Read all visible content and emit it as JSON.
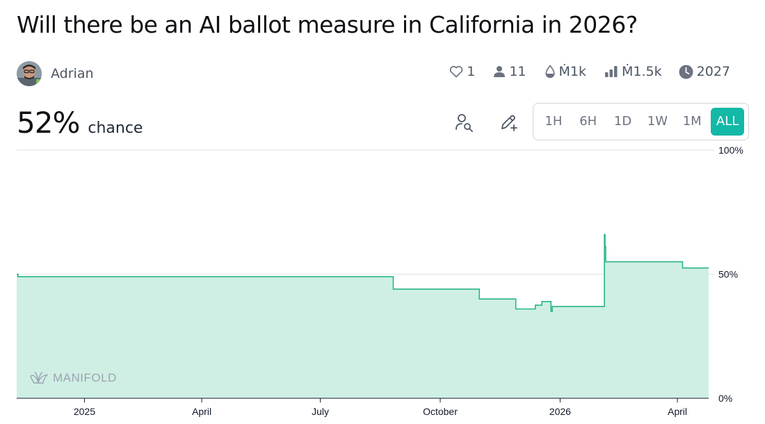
{
  "question": {
    "title": "Will there be an AI ballot measure in California in 2026?"
  },
  "creator": {
    "name": "Adrian"
  },
  "stats": {
    "likes": "1",
    "traders": "11",
    "liquidity": "Ṁ1k",
    "volume": "Ṁ1.5k",
    "close_year": "2027"
  },
  "probability": {
    "value": "52%",
    "label": "chance"
  },
  "time_ranges": [
    "1H",
    "6H",
    "1D",
    "1W",
    "1M",
    "ALL"
  ],
  "selected_range": "ALL",
  "watermark": "MANIFOLD",
  "colors": {
    "accent": "#14b8a6",
    "line": "#27b48a",
    "fill": "#cfefe4",
    "gridline": "#e5e7eb"
  },
  "chart_data": {
    "type": "area",
    "step": true,
    "title": "",
    "xlabel": "",
    "ylabel": "",
    "ylim": [
      0,
      100
    ],
    "x_range": [
      "2024-11-10",
      "2026-04-25"
    ],
    "x_ticks": [
      {
        "date": "2025-01-01",
        "label": "2025"
      },
      {
        "date": "2025-04-01",
        "label": "April"
      },
      {
        "date": "2025-07-01",
        "label": "July"
      },
      {
        "date": "2025-10-01",
        "label": "October"
      },
      {
        "date": "2026-01-01",
        "label": "2026"
      },
      {
        "date": "2026-04-01",
        "label": "April"
      }
    ],
    "y_ticks": [
      {
        "value": 100,
        "label": "100%"
      },
      {
        "value": 50,
        "label": "50%"
      },
      {
        "value": 0,
        "label": "0%"
      }
    ],
    "gridline_values": [
      100,
      50
    ],
    "series": [
      {
        "name": "Probability",
        "points": [
          {
            "date": "2024-11-10",
            "value": 50
          },
          {
            "date": "2024-11-11",
            "value": 49
          },
          {
            "date": "2025-08-26",
            "value": 44
          },
          {
            "date": "2025-10-31",
            "value": 40
          },
          {
            "date": "2025-11-28",
            "value": 36
          },
          {
            "date": "2025-12-13",
            "value": 37.5
          },
          {
            "date": "2025-12-18",
            "value": 39
          },
          {
            "date": "2025-12-25",
            "value": 35
          },
          {
            "date": "2025-12-26",
            "value": 37
          },
          {
            "date": "2026-02-04",
            "value": 66
          },
          {
            "date": "2026-02-04T12:00",
            "value": 61
          },
          {
            "date": "2026-02-05",
            "value": 55
          },
          {
            "date": "2026-04-05",
            "value": 52.5
          },
          {
            "date": "2026-04-25",
            "value": 52.5
          }
        ]
      }
    ]
  }
}
